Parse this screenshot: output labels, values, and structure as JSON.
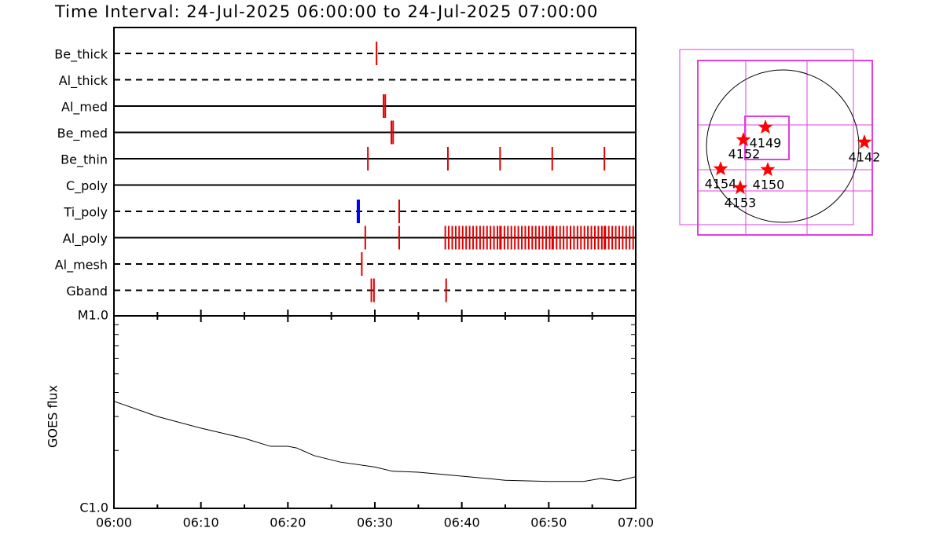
{
  "title": "Time Interval: 24-Jul-2025 06:00:00 to 24-Jul-2025 07:00:00",
  "timeline": {
    "type": "timeline",
    "xlim": [
      0,
      60
    ],
    "xticks": [
      {
        "value": 0,
        "label": "06:00"
      },
      {
        "value": 10,
        "label": "06:10"
      },
      {
        "value": 20,
        "label": "06:20"
      },
      {
        "value": 30,
        "label": "06:30"
      },
      {
        "value": 40,
        "label": "06:40"
      },
      {
        "value": 50,
        "label": "06:50"
      },
      {
        "value": 60,
        "label": "07:00"
      }
    ],
    "xminor": [
      5,
      15,
      25,
      35,
      45,
      55
    ],
    "rows": [
      {
        "name": "Be_thick",
        "style": "dashed",
        "groups": [
          {
            "color": "#e00000",
            "t": [
              30.2
            ]
          }
        ]
      },
      {
        "name": "Al_thick",
        "style": "dashed",
        "groups": []
      },
      {
        "name": "Al_med",
        "style": "solid",
        "groups": [
          {
            "color": "#e00000",
            "t": [
              31.0,
              31.2
            ]
          }
        ]
      },
      {
        "name": "Be_med",
        "style": "solid",
        "groups": [
          {
            "color": "#e00000",
            "t": [
              31.9,
              32.1
            ]
          }
        ]
      },
      {
        "name": "Be_thin",
        "style": "solid",
        "groups": [
          {
            "color": "#e00000",
            "t": [
              29.2,
              38.4,
              44.4,
              50.4,
              56.4
            ]
          }
        ]
      },
      {
        "name": "C_poly",
        "style": "solid",
        "groups": []
      },
      {
        "name": "Ti_poly",
        "style": "dashed",
        "groups": [
          {
            "color": "#0000ff",
            "t": [
              28.1
            ]
          },
          {
            "color": "#e00000",
            "t": [
              32.8
            ]
          }
        ]
      },
      {
        "name": "Al_poly",
        "style": "solid",
        "groups": [
          {
            "color": "#e00000",
            "t": [
              28.9,
              32.8,
              38.1,
              38.5,
              38.9,
              39.3,
              39.7,
              40.1,
              40.5,
              40.9,
              41.3,
              41.7,
              42.1,
              42.5,
              42.9,
              43.3,
              43.7,
              44.1,
              44.4,
              44.5,
              44.9,
              45.3,
              45.7,
              46.1,
              46.5,
              46.9,
              47.3,
              47.7,
              48.1,
              48.5,
              48.9,
              49.3,
              49.7,
              50.1,
              50.4,
              50.5,
              50.9,
              51.3,
              51.7,
              52.1,
              52.5,
              52.9,
              53.3,
              53.7,
              54.1,
              54.5,
              54.9,
              55.3,
              55.7,
              56.1,
              56.4,
              56.5,
              56.9,
              57.3,
              57.7,
              58.1,
              58.5,
              58.9,
              59.3,
              59.7
            ]
          }
        ]
      },
      {
        "name": "Al_mesh",
        "style": "dashed",
        "groups": [
          {
            "color": "#e00000",
            "t": [
              28.5
            ]
          }
        ]
      },
      {
        "name": "Gband",
        "style": "dashed",
        "groups": [
          {
            "color": "#e00000",
            "t": [
              29.6,
              29.9,
              38.2
            ]
          }
        ]
      }
    ]
  },
  "goes": {
    "type": "line",
    "ylabel": "GOES flux",
    "log": true,
    "ylim": [
      1e-06,
      1e-05
    ],
    "yticks": [
      {
        "value": 1e-06,
        "label": "C1.0"
      },
      {
        "value": 1e-05,
        "label": "M1.0"
      }
    ],
    "yminor": [
      2e-06,
      3e-06,
      4e-06,
      5e-06,
      6e-06,
      7e-06,
      8e-06,
      9e-06
    ],
    "x": [
      0,
      5,
      10,
      15,
      18,
      20,
      21,
      23,
      26,
      30,
      32,
      35,
      40,
      45,
      50,
      54,
      56,
      58,
      60
    ],
    "values": [
      3.6e-06,
      3e-06,
      2.61e-06,
      2.31e-06,
      2.1e-06,
      2.1e-06,
      2.06e-06,
      1.88e-06,
      1.74e-06,
      1.64e-06,
      1.56e-06,
      1.54e-06,
      1.47e-06,
      1.4e-06,
      1.38e-06,
      1.38e-06,
      1.43e-06,
      1.39e-06,
      1.46e-06
    ]
  },
  "map": {
    "regions": [
      "4149",
      "4152",
      "4142",
      "4154",
      "4150",
      "4153"
    ]
  }
}
